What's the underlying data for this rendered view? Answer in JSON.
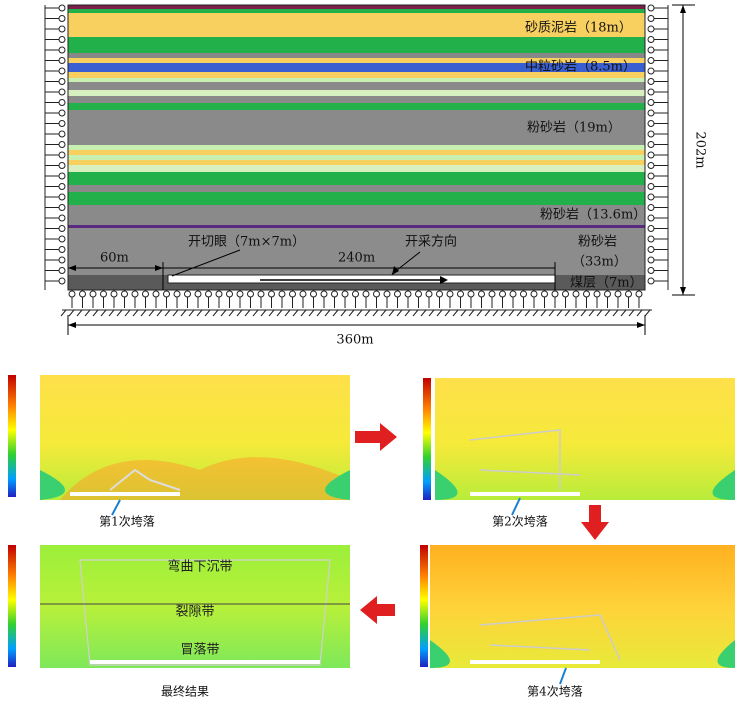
{
  "model": {
    "layers": [
      "砂质泥岩（18m）",
      "中粒砂岩（8.5m）",
      "粉砂岩（19m）",
      "粉砂岩（13.6m）",
      "粉砂岩",
      "（33m）",
      "煤层（7m）"
    ],
    "dimensions": {
      "left_pillar": "60m",
      "cut": "开切眼（7m×7m）",
      "advance": "240m",
      "direction": "开采方向",
      "height": "202m",
      "width": "360m"
    }
  },
  "panels": [
    {
      "caption": "第1次垮落"
    },
    {
      "caption": "第2次垮落"
    },
    {
      "caption": "最终结果",
      "zones": [
        "弯曲下沉带",
        "裂隙带",
        "冒落带"
      ]
    },
    {
      "caption": "第4次垮落"
    }
  ]
}
